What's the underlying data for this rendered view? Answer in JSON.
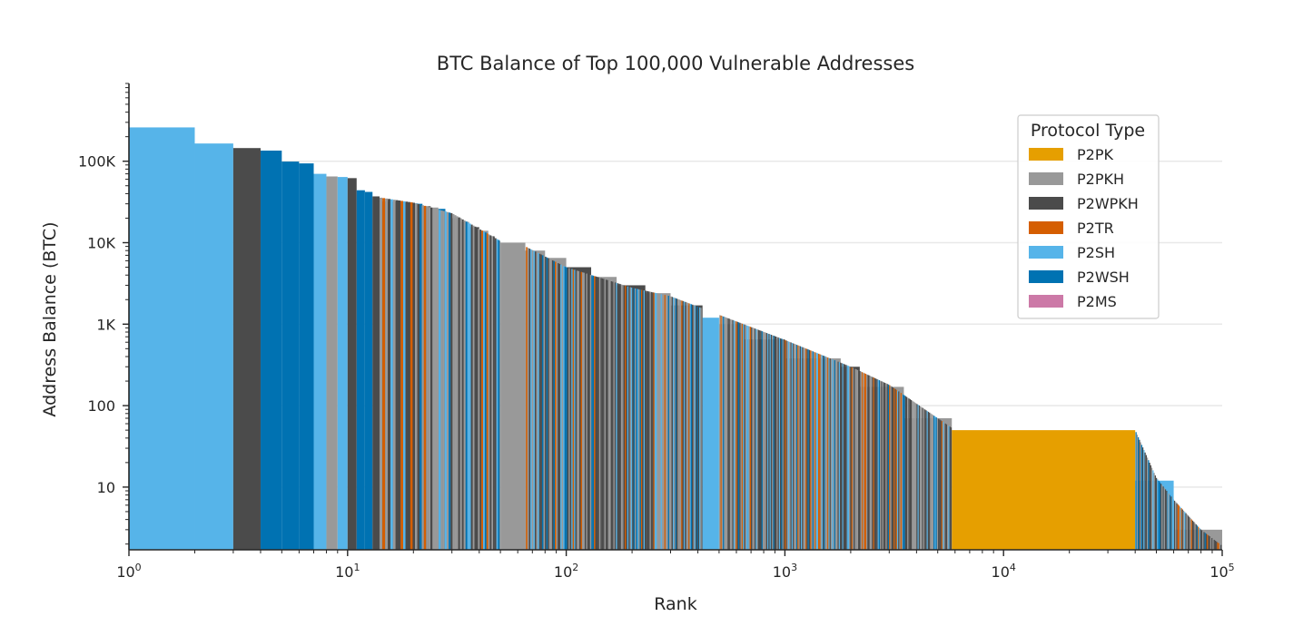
{
  "chart_data": {
    "type": "bar",
    "title": "BTC Balance of Top 100,000 Vulnerable Addresses",
    "xlabel": "Rank",
    "ylabel": "Address Balance (BTC)",
    "xscale": "log",
    "yscale": "log",
    "xlim": [
      1,
      100000
    ],
    "ylim": [
      1.7,
      900000
    ],
    "x_ticks": [
      {
        "value": 1,
        "base": "10",
        "exp": "0"
      },
      {
        "value": 10,
        "base": "10",
        "exp": "1"
      },
      {
        "value": 100,
        "base": "10",
        "exp": "2"
      },
      {
        "value": 1000,
        "base": "10",
        "exp": "3"
      },
      {
        "value": 10000,
        "base": "10",
        "exp": "4"
      },
      {
        "value": 100000,
        "base": "10",
        "exp": "5"
      }
    ],
    "y_ticks": [
      {
        "value": 10,
        "label": "10"
      },
      {
        "value": 100,
        "label": "100"
      },
      {
        "value": 1000,
        "label": "1K"
      },
      {
        "value": 10000,
        "label": "10K"
      },
      {
        "value": 100000,
        "label": "100K"
      }
    ],
    "grid": "y-major",
    "legend": {
      "title": "Protocol Type",
      "placement": "top-right",
      "entries": [
        {
          "key": "P2PK",
          "label": "P2PK",
          "color": "#E69F00"
        },
        {
          "key": "P2PKH",
          "label": "P2PKH",
          "color": "#999999"
        },
        {
          "key": "P2WPKH",
          "label": "P2WPKH",
          "color": "#4B4B4B"
        },
        {
          "key": "P2TR",
          "label": "P2TR",
          "color": "#D55E00"
        },
        {
          "key": "P2SH",
          "label": "P2SH",
          "color": "#56B4E9"
        },
        {
          "key": "P2WSH",
          "label": "P2WSH",
          "color": "#0072B2"
        },
        {
          "key": "P2MS",
          "label": "P2MS",
          "color": "#CC79A7"
        }
      ]
    },
    "series": [
      {
        "rank_start": 1,
        "rank_end": 2,
        "balance": 260000,
        "type": "P2SH"
      },
      {
        "rank_start": 2,
        "rank_end": 3,
        "balance": 165000,
        "type": "P2SH"
      },
      {
        "rank_start": 3,
        "rank_end": 4,
        "balance": 145000,
        "type": "P2WPKH"
      },
      {
        "rank_start": 4,
        "rank_end": 5,
        "balance": 135000,
        "type": "P2WSH"
      },
      {
        "rank_start": 5,
        "rank_end": 6,
        "balance": 99000,
        "type": "P2WSH"
      },
      {
        "rank_start": 6,
        "rank_end": 7,
        "balance": 94000,
        "type": "P2WSH"
      },
      {
        "rank_start": 7,
        "rank_end": 8,
        "balance": 70000,
        "type": "P2SH"
      },
      {
        "rank_start": 8,
        "rank_end": 9,
        "balance": 65000,
        "type": "P2PKH"
      },
      {
        "rank_start": 9,
        "rank_end": 10,
        "balance": 64000,
        "type": "P2SH"
      },
      {
        "rank_start": 10,
        "rank_end": 11,
        "balance": 62000,
        "type": "P2WPKH"
      },
      {
        "rank_start": 11,
        "rank_end": 12,
        "balance": 44000,
        "type": "P2WSH"
      },
      {
        "rank_start": 12,
        "rank_end": 13,
        "balance": 42000,
        "type": "P2WSH"
      },
      {
        "rank_start": 13,
        "rank_end": 14,
        "balance": 37000,
        "type": "P2WPKH"
      },
      {
        "rank_start": 14,
        "rank_end": 17,
        "balance": 32000,
        "type": "P2WPKH"
      },
      {
        "rank_start": 17,
        "rank_end": 18,
        "balance": 31500,
        "type": "P2PKH"
      },
      {
        "rank_start": 18,
        "rank_end": 20,
        "balance": 31000,
        "type": "P2WPKH"
      },
      {
        "rank_start": 20,
        "rank_end": 21,
        "balance": 30500,
        "type": "P2SH"
      },
      {
        "rank_start": 21,
        "rank_end": 22,
        "balance": 30000,
        "type": "P2WSH"
      },
      {
        "rank_start": 22,
        "rank_end": 24,
        "balance": 28000,
        "type": "P2WPKH"
      },
      {
        "rank_start": 24,
        "rank_end": 26,
        "balance": 27000,
        "type": "P2PKH"
      },
      {
        "rank_start": 26,
        "rank_end": 28,
        "balance": 26000,
        "type": "P2WSH"
      },
      {
        "rank_start": 28,
        "rank_end": 30,
        "balance": 23000,
        "type": "P2PKH"
      },
      {
        "rank_start": 30,
        "rank_end": 33,
        "balance": 20000,
        "type": "P2WPKH"
      },
      {
        "rank_start": 33,
        "rank_end": 36,
        "balance": 18000,
        "type": "P2PKH"
      },
      {
        "rank_start": 36,
        "rank_end": 40,
        "balance": 15500,
        "type": "P2WPKH"
      },
      {
        "rank_start": 40,
        "rank_end": 44,
        "balance": 14000,
        "type": "P2PKH"
      },
      {
        "rank_start": 44,
        "rank_end": 47,
        "balance": 12000,
        "type": "P2WPKH"
      },
      {
        "rank_start": 47,
        "rank_end": 50,
        "balance": 10500,
        "type": "P2PKH"
      },
      {
        "rank_start": 50,
        "rank_end": 65,
        "balance": 10000,
        "type": "P2PKH"
      },
      {
        "rank_start": 65,
        "rank_end": 80,
        "balance": 8000,
        "type": "P2PKH"
      },
      {
        "rank_start": 80,
        "rank_end": 100,
        "balance": 6500,
        "type": "P2PKH"
      },
      {
        "rank_start": 100,
        "rank_end": 130,
        "balance": 5000,
        "type": "P2WPKH"
      },
      {
        "rank_start": 130,
        "rank_end": 170,
        "balance": 3800,
        "type": "P2PKH"
      },
      {
        "rank_start": 170,
        "rank_end": 230,
        "balance": 3000,
        "type": "P2WPKH"
      },
      {
        "rank_start": 230,
        "rank_end": 300,
        "balance": 2400,
        "type": "P2PKH"
      },
      {
        "rank_start": 300,
        "rank_end": 420,
        "balance": 1700,
        "type": "P2WPKH"
      },
      {
        "rank_start": 420,
        "rank_end": 500,
        "balance": 1200,
        "type": "P2SH"
      },
      {
        "rank_start": 500,
        "rank_end": 650,
        "balance": 1000,
        "type": "P2PKH"
      },
      {
        "rank_start": 650,
        "rank_end": 1000,
        "balance": 650,
        "type": "P2WPKH"
      },
      {
        "rank_start": 1000,
        "rank_end": 1800,
        "balance": 380,
        "type": "P2PKH"
      },
      {
        "rank_start": 1800,
        "rank_end": 2200,
        "balance": 300,
        "type": "P2WPKH"
      },
      {
        "rank_start": 2200,
        "rank_end": 3500,
        "balance": 170,
        "type": "P2PKH"
      },
      {
        "rank_start": 3500,
        "rank_end": 5800,
        "balance": 70,
        "type": "P2PKH"
      },
      {
        "rank_start": 5800,
        "rank_end": 40000,
        "balance": 50,
        "type": "P2PK"
      },
      {
        "rank_start": 40000,
        "rank_end": 60000,
        "balance": 12,
        "type": "P2SH"
      },
      {
        "rank_start": 60000,
        "rank_end": 100000,
        "balance": 3,
        "type": "P2PKH"
      }
    ],
    "balance_curve": [
      [
        1,
        260000
      ],
      [
        2,
        165000
      ],
      [
        3,
        145000
      ],
      [
        5,
        99000
      ],
      [
        7,
        70000
      ],
      [
        10,
        62000
      ],
      [
        13,
        37000
      ],
      [
        20,
        31000
      ],
      [
        30,
        23000
      ],
      [
        50,
        10500
      ],
      [
        65,
        9000
      ],
      [
        100,
        5000
      ],
      [
        200,
        2800
      ],
      [
        300,
        2200
      ],
      [
        1000,
        640
      ],
      [
        2000,
        300
      ],
      [
        3000,
        180
      ],
      [
        6000,
        50
      ],
      [
        40000,
        50
      ],
      [
        50000,
        13
      ],
      [
        60000,
        7
      ],
      [
        80000,
        3
      ],
      [
        100000,
        1.9
      ]
    ]
  }
}
